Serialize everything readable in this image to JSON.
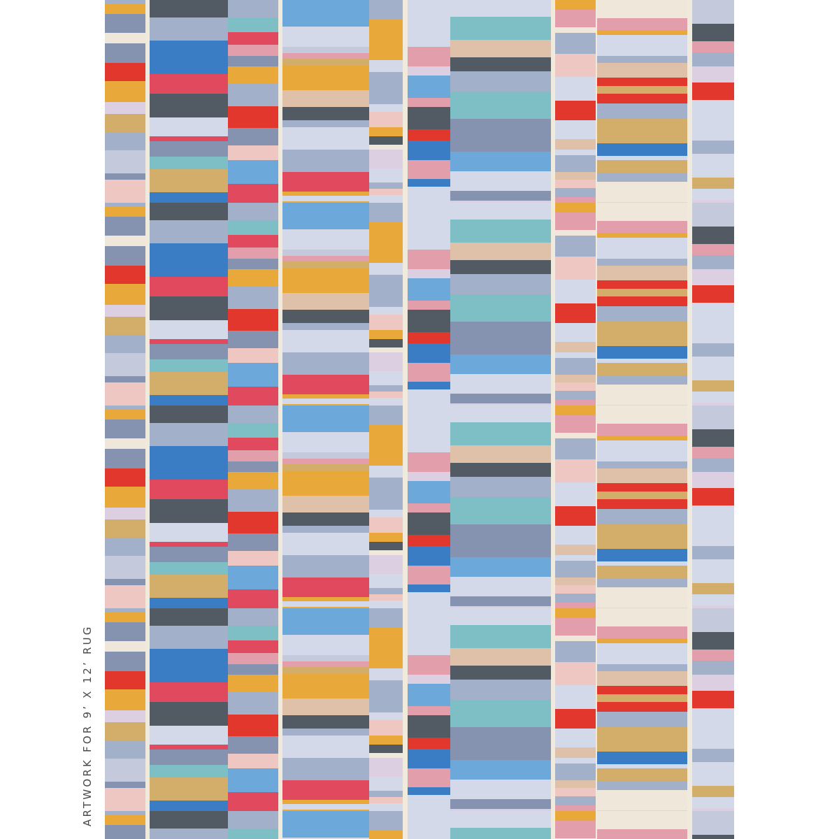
{
  "caption": "ARTWORK FOR 9’ X 12’ RUG"
}
